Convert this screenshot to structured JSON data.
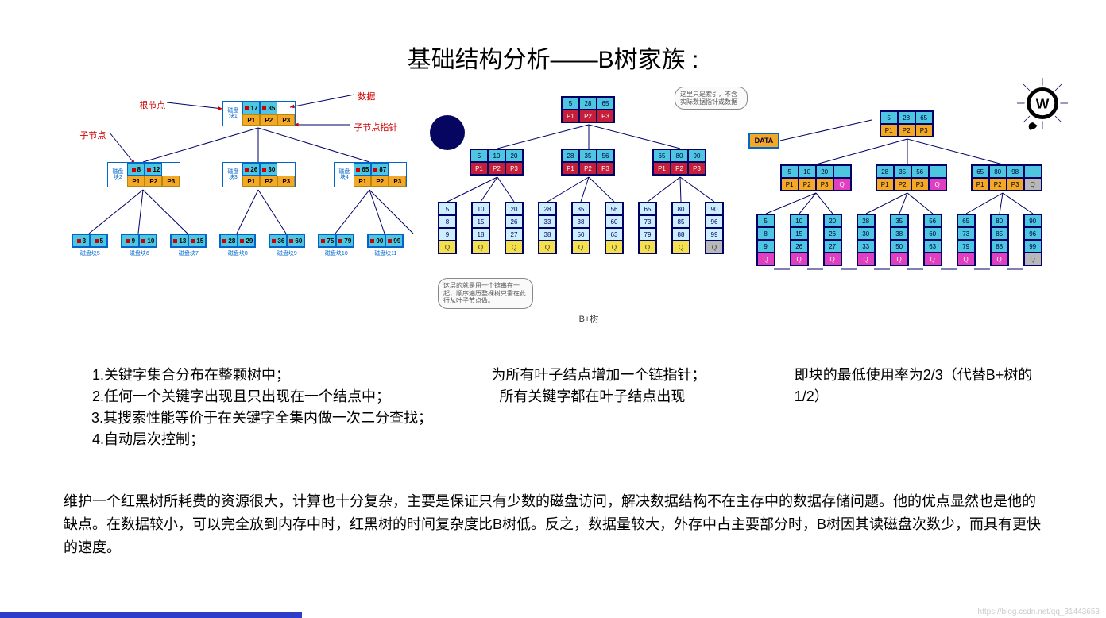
{
  "title": "基础结构分析——B树家族 :",
  "watermark": "https://blog.csdn.net/qq_31443653",
  "colors": {
    "cyan": "#4ec6e0",
    "lightcyan": "#cceeff",
    "orange": "#f4a828",
    "red": "#c41e3a",
    "yellow": "#f4e04d",
    "magenta": "#e040c0",
    "gray": "#b8b8b8",
    "navy": "#060660",
    "blueBorder": "#0066cc",
    "arrowRed": "#cc0000",
    "blueStrip": "#2d3dc9",
    "text": "#000000"
  },
  "btree": {
    "labels": {
      "root": "根节点",
      "data": "数据",
      "child": "子节点",
      "childPtr": "子节点指针"
    },
    "root": {
      "sideLabel": "磁盘块1",
      "keys": [
        "17",
        "35"
      ],
      "ptrs": [
        "P1",
        "P2",
        "P3"
      ]
    },
    "mids": [
      {
        "sideLabel": "磁盘块2",
        "keys": [
          "8",
          "12"
        ],
        "ptrs": [
          "P1",
          "P2",
          "P3"
        ]
      },
      {
        "sideLabel": "磁盘块3",
        "keys": [
          "26",
          "30"
        ],
        "ptrs": [
          "P1",
          "P2",
          "P3"
        ]
      },
      {
        "sideLabel": "磁盘块4",
        "keys": [
          "65",
          "87"
        ],
        "ptrs": [
          "P1",
          "P2",
          "P3"
        ]
      }
    ],
    "leaves": [
      {
        "label": "磁盘块5",
        "keys": [
          "3",
          "5"
        ]
      },
      {
        "label": "磁盘块6",
        "keys": [
          "9",
          "10"
        ]
      },
      {
        "label": "磁盘块7",
        "keys": [
          "13",
          "15"
        ]
      },
      {
        "label": "磁盘块8",
        "keys": [
          "28",
          "29"
        ]
      },
      {
        "label": "磁盘块9",
        "keys": [
          "36",
          "60"
        ]
      },
      {
        "label": "磁盘块10",
        "keys": [
          "75",
          "79"
        ]
      },
      {
        "label": "磁盘块11",
        "keys": [
          "90",
          "99"
        ]
      }
    ]
  },
  "bplus": {
    "caption": "B+树",
    "cloud_top": "这里只是索引，不含实际数据指针或数据",
    "cloud_bottom": "这层的就是用一个链串在一起，顺序遍历整棵树只需在此行从叶子节点做。",
    "root": {
      "keys": [
        "5",
        "28",
        "65"
      ],
      "ptrs": [
        "P1",
        "P2",
        "P3"
      ]
    },
    "mids": [
      {
        "keys": [
          "5",
          "10",
          "20"
        ],
        "ptrs": [
          "P1",
          "P2",
          "P3"
        ]
      },
      {
        "keys": [
          "28",
          "35",
          "56"
        ],
        "ptrs": [
          "P1",
          "P2",
          "P3"
        ]
      },
      {
        "keys": [
          "65",
          "80",
          "90"
        ],
        "ptrs": [
          "P1",
          "P2",
          "P3"
        ]
      }
    ],
    "leaves": [
      {
        "vals": [
          "5",
          "8",
          "9"
        ],
        "q": "Q"
      },
      {
        "vals": [
          "10",
          "15",
          "18"
        ],
        "q": "Q"
      },
      {
        "vals": [
          "20",
          "26",
          "27"
        ],
        "q": "Q"
      },
      {
        "vals": [
          "28",
          "33",
          "38"
        ],
        "q": "Q"
      },
      {
        "vals": [
          "35",
          "38",
          "50"
        ],
        "q": "Q"
      },
      {
        "vals": [
          "56",
          "60",
          "63"
        ],
        "q": "Q"
      },
      {
        "vals": [
          "65",
          "73",
          "79"
        ],
        "q": "Q"
      },
      {
        "vals": [
          "80",
          "85",
          "88"
        ],
        "q": "Q"
      },
      {
        "vals": [
          "90",
          "96",
          "99"
        ],
        "q": "Q"
      }
    ]
  },
  "bstar": {
    "dataLabel": "DATA",
    "root": {
      "keys": [
        "5",
        "28",
        "65"
      ],
      "ptrs": [
        "P1",
        "P2",
        "P3"
      ]
    },
    "mids": [
      {
        "keys": [
          "5",
          "10",
          "20"
        ],
        "ptrs": [
          "P1",
          "P2",
          "P3"
        ],
        "q": "Q",
        "qcolor": "magenta"
      },
      {
        "keys": [
          "28",
          "35",
          "56"
        ],
        "ptrs": [
          "P1",
          "P2",
          "P3"
        ],
        "q": "Q",
        "qcolor": "magenta"
      },
      {
        "keys": [
          "65",
          "80",
          "98"
        ],
        "ptrs": [
          "P1",
          "P2",
          "P3"
        ],
        "q": "Q",
        "qcolor": "gray"
      }
    ],
    "leaves": [
      {
        "vals": [
          "5",
          "8",
          "9"
        ],
        "qcolor": "magenta"
      },
      {
        "vals": [
          "10",
          "15",
          "26"
        ],
        "qcolor": "magenta"
      },
      {
        "vals": [
          "20",
          "26",
          "27"
        ],
        "qcolor": "magenta"
      },
      {
        "vals": [
          "28",
          "30",
          "33"
        ],
        "qcolor": "magenta"
      },
      {
        "vals": [
          "35",
          "38",
          "50"
        ],
        "qcolor": "magenta"
      },
      {
        "vals": [
          "56",
          "60",
          "63"
        ],
        "qcolor": "magenta"
      },
      {
        "vals": [
          "65",
          "73",
          "79"
        ],
        "qcolor": "magenta"
      },
      {
        "vals": [
          "80",
          "85",
          "88"
        ],
        "qcolor": "magenta"
      },
      {
        "vals": [
          "90",
          "96",
          "99"
        ],
        "qcolor": "gray"
      }
    ],
    "qLabel": "Q"
  },
  "descriptions": {
    "left": [
      "1.关键字集合分布在整颗树中；",
      "2.任何一个关键字出现且只出现在一个结点中；",
      "3.其搜索性能等价于在关键字全集内做一次二分查找；",
      "4.自动层次控制；"
    ],
    "mid": "为所有叶子结点增加一个链指针；\n所有关键字都在叶子结点出现",
    "right": "即块的最低使用率为2/3（代替B+树的1/2）"
  },
  "bottom": "维护一个红黑树所耗费的资源很大，计算也十分复杂，主要是保证只有少数的磁盘访问，解决数据结构不在主存中的数据存储问题。他的优点显然也是他的缺点。在数据较小，可以完全放到内存中时，红黑树的时间复杂度比B树低。反之，数据量较大，外存中占主要部分时，B树因其读磁盘次数少，而具有更快的速度。"
}
